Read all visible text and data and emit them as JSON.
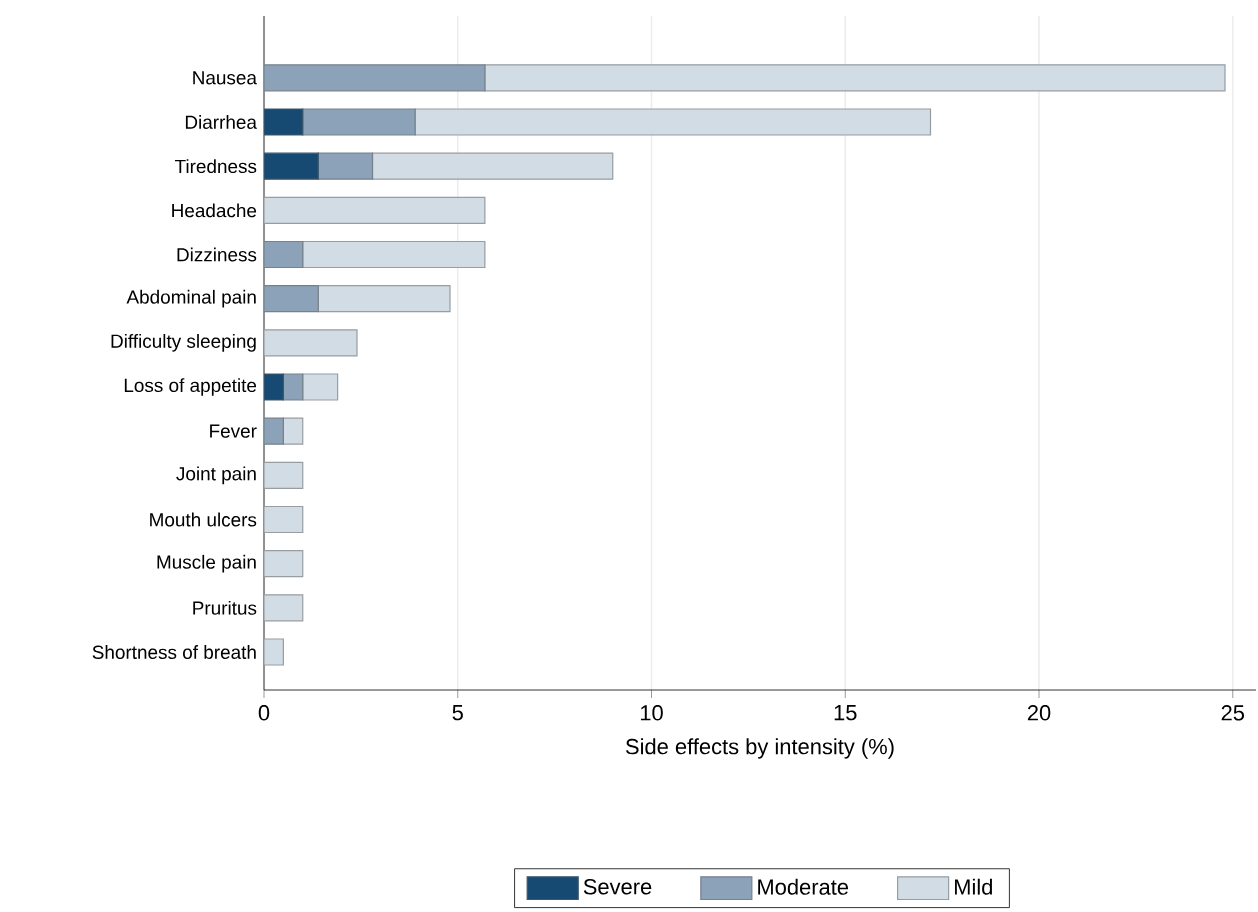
{
  "chart_data": {
    "type": "bar",
    "orientation": "horizontal",
    "stacked": true,
    "xlabel": "Side effects by intensity (%)",
    "categories": [
      "Nausea",
      "Diarrhea",
      "Tiredness",
      "Headache",
      "Dizziness",
      "Abdominal pain",
      "Difficulty sleeping",
      "Loss of appetite",
      "Fever",
      "Joint pain",
      "Mouth ulcers",
      "Muscle pain",
      "Pruritus",
      "Shortness of breath"
    ],
    "series": [
      {
        "name": "Severe",
        "color": "#164a72",
        "values": [
          0,
          1.0,
          1.4,
          0,
          0,
          0,
          0,
          0.5,
          0,
          0,
          0,
          0,
          0,
          0
        ]
      },
      {
        "name": "Moderate",
        "color": "#8ba2b8",
        "values": [
          5.7,
          2.9,
          1.4,
          0,
          1.0,
          1.4,
          0,
          0.5,
          0.5,
          0,
          0,
          0,
          0,
          0
        ]
      },
      {
        "name": "Mild",
        "color": "#d1dce5",
        "values": [
          19.1,
          13.3,
          6.2,
          5.7,
          4.7,
          3.4,
          2.4,
          0.9,
          0.5,
          1.0,
          1.0,
          1.0,
          1.0,
          0.5
        ]
      }
    ],
    "xlim": [
      0,
      25.6
    ],
    "xticks": [
      0,
      5,
      10,
      15,
      20,
      25
    ],
    "grid": "x",
    "legend": "bottom"
  }
}
